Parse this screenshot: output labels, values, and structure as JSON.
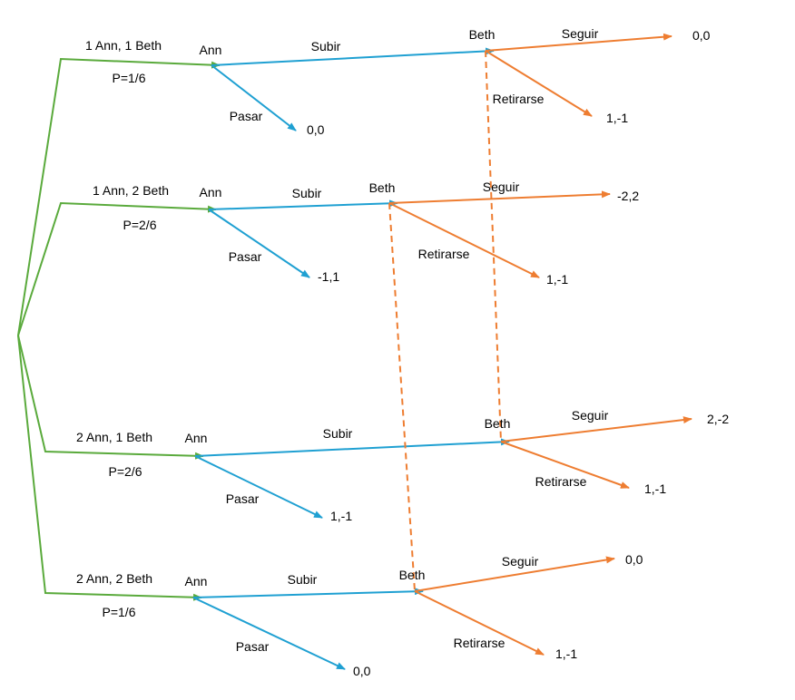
{
  "colors": {
    "chance": "#5aaa3c",
    "ann": "#1fa0d2",
    "beth": "#ee7d31",
    "info_set": "#ee7d31",
    "text": "#000000"
  },
  "branches": [
    {
      "deal": "1 Ann, 1 Beth",
      "prob": "P=1/6",
      "ann": "Ann",
      "raise": "Subir",
      "pass": "Pasar",
      "pass_payoff": "0,0",
      "beth": "Beth",
      "call": "Seguir",
      "call_payoff": "0,0",
      "fold": "Retirarse",
      "fold_payoff": "1,-1"
    },
    {
      "deal": "1 Ann, 2 Beth",
      "prob": "P=2/6",
      "ann": "Ann",
      "raise": "Subir",
      "pass": "Pasar",
      "pass_payoff": "-1,1",
      "beth": "Beth",
      "call": "Seguir",
      "call_payoff": "-2,2",
      "fold": "Retirarse",
      "fold_payoff": "1,-1"
    },
    {
      "deal": "2 Ann, 1 Beth",
      "prob": "P=2/6",
      "ann": "Ann",
      "raise": "Subir",
      "pass": "Pasar",
      "pass_payoff": "1,-1",
      "beth": "Beth",
      "call": "Seguir",
      "call_payoff": "2,-2",
      "fold": "Retirarse",
      "fold_payoff": "1,-1"
    },
    {
      "deal": "2 Ann, 2 Beth",
      "prob": "P=1/6",
      "ann": "Ann",
      "raise": "Subir",
      "pass": "Pasar",
      "pass_payoff": "0,0",
      "beth": "Beth",
      "call": "Seguir",
      "call_payoff": "0,0",
      "fold": "Retirarse",
      "fold_payoff": "1,-1"
    }
  ]
}
